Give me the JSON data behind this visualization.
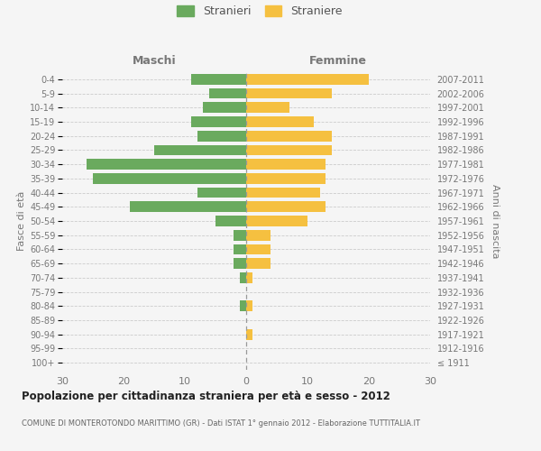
{
  "age_groups": [
    "100+",
    "95-99",
    "90-94",
    "85-89",
    "80-84",
    "75-79",
    "70-74",
    "65-69",
    "60-64",
    "55-59",
    "50-54",
    "45-49",
    "40-44",
    "35-39",
    "30-34",
    "25-29",
    "20-24",
    "15-19",
    "10-14",
    "5-9",
    "0-4"
  ],
  "birth_years": [
    "≤ 1911",
    "1912-1916",
    "1917-1921",
    "1922-1926",
    "1927-1931",
    "1932-1936",
    "1937-1941",
    "1942-1946",
    "1947-1951",
    "1952-1956",
    "1957-1961",
    "1962-1966",
    "1967-1971",
    "1972-1976",
    "1977-1981",
    "1982-1986",
    "1987-1991",
    "1992-1996",
    "1997-2001",
    "2002-2006",
    "2007-2011"
  ],
  "males": [
    0,
    0,
    0,
    0,
    1,
    0,
    1,
    2,
    2,
    2,
    5,
    19,
    8,
    25,
    26,
    15,
    8,
    9,
    7,
    6,
    9
  ],
  "females": [
    0,
    0,
    1,
    0,
    1,
    0,
    1,
    4,
    4,
    4,
    10,
    13,
    12,
    13,
    13,
    14,
    14,
    11,
    7,
    14,
    20
  ],
  "male_color": "#6aaa5e",
  "female_color": "#f5c040",
  "background_color": "#f5f5f5",
  "grid_color": "#cccccc",
  "title": "Popolazione per cittadinanza straniera per età e sesso - 2012",
  "subtitle": "COMUNE DI MONTEROTONDO MARITTIMO (GR) - Dati ISTAT 1° gennaio 2012 - Elaborazione TUTTITALIA.IT",
  "left_label": "Maschi",
  "right_label": "Femmine",
  "y_label_left": "Fasce di età",
  "y_label_right": "Anni di nascita",
  "legend_male": "Stranieri",
  "legend_female": "Straniere",
  "xlim": 30
}
